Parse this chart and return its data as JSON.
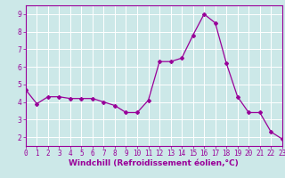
{
  "x": [
    0,
    1,
    2,
    3,
    4,
    5,
    6,
    7,
    8,
    9,
    10,
    11,
    12,
    13,
    14,
    15,
    16,
    17,
    18,
    19,
    20,
    21,
    22,
    23
  ],
  "y": [
    4.7,
    3.9,
    4.3,
    4.3,
    4.2,
    4.2,
    4.2,
    4.0,
    3.8,
    3.4,
    3.4,
    4.1,
    6.3,
    6.3,
    6.5,
    7.8,
    9.0,
    8.5,
    6.2,
    4.3,
    3.4,
    3.4,
    2.3,
    1.9
  ],
  "xlim": [
    0,
    23
  ],
  "ylim": [
    1.5,
    9.5
  ],
  "yticks": [
    2,
    3,
    4,
    5,
    6,
    7,
    8,
    9
  ],
  "xticks": [
    0,
    1,
    2,
    3,
    4,
    5,
    6,
    7,
    8,
    9,
    10,
    11,
    12,
    13,
    14,
    15,
    16,
    17,
    18,
    19,
    20,
    21,
    22,
    23
  ],
  "xlabel": "Windchill (Refroidissement éolien,°C)",
  "line_color": "#990099",
  "marker": "D",
  "marker_size": 2.0,
  "line_width": 0.9,
  "bg_color": "#cce8e8",
  "grid_color": "#ffffff",
  "tick_color": "#990099",
  "label_color": "#990099",
  "tick_fontsize": 5.5,
  "xlabel_fontsize": 6.5,
  "spine_color": "#990099"
}
